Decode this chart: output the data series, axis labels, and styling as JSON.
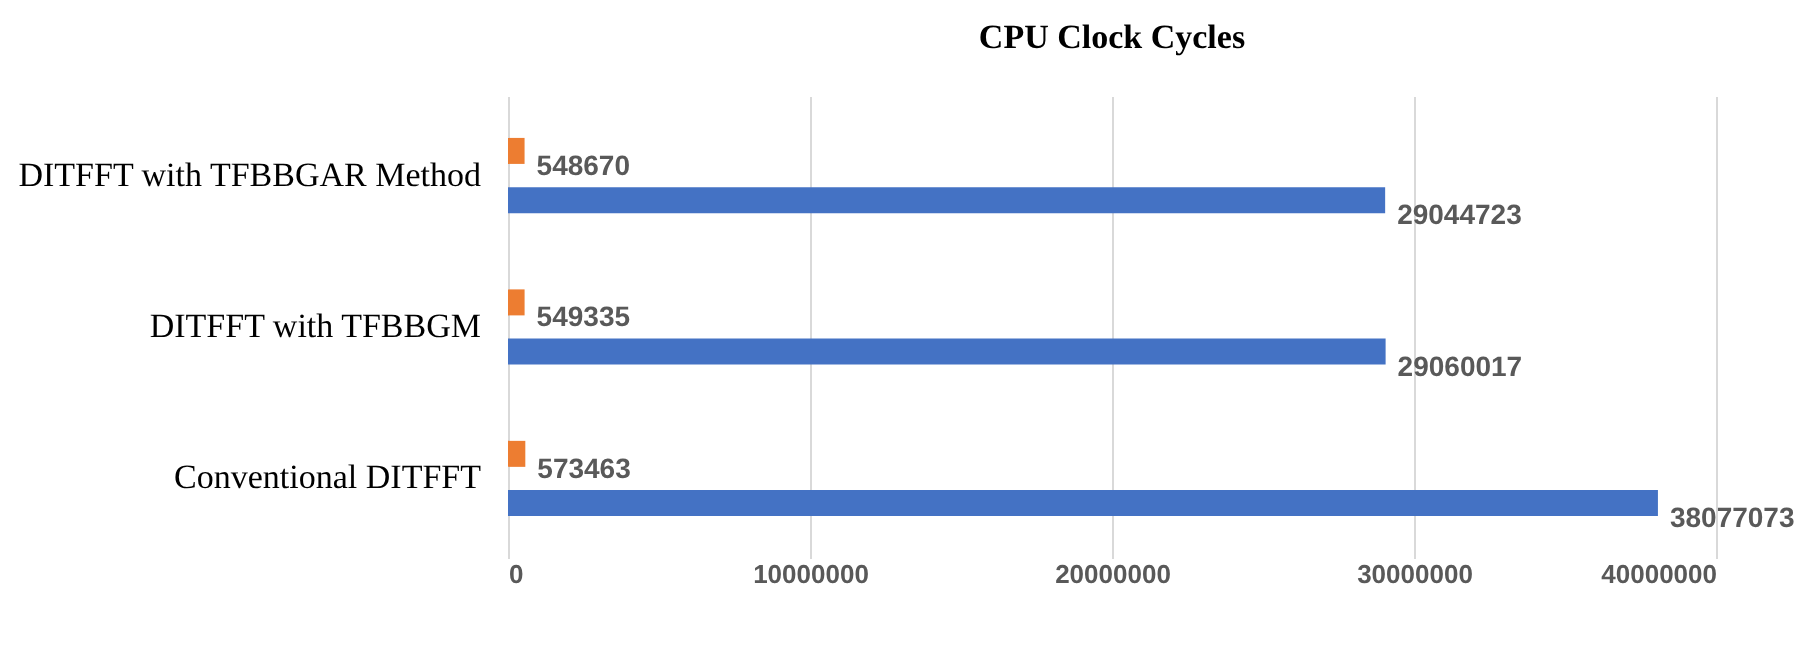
{
  "chart_data": {
    "type": "bar",
    "orientation": "horizontal",
    "title": "CPU Clock Cycles",
    "categories": [
      "DITFFT with TFBBGAR Method",
      "DITFFT with TFBBGM",
      "Conventional   DITFFT"
    ],
    "series": [
      {
        "color": "#ed7d31",
        "values": [
          548670,
          549335,
          573463
        ]
      },
      {
        "color": "#4472c4",
        "values": [
          29044723,
          29060017,
          38077073
        ]
      }
    ],
    "xlim": [
      0,
      40000000
    ],
    "xticks": [
      0,
      10000000,
      20000000,
      30000000,
      40000000
    ],
    "grid": "x",
    "data_labels": true
  }
}
